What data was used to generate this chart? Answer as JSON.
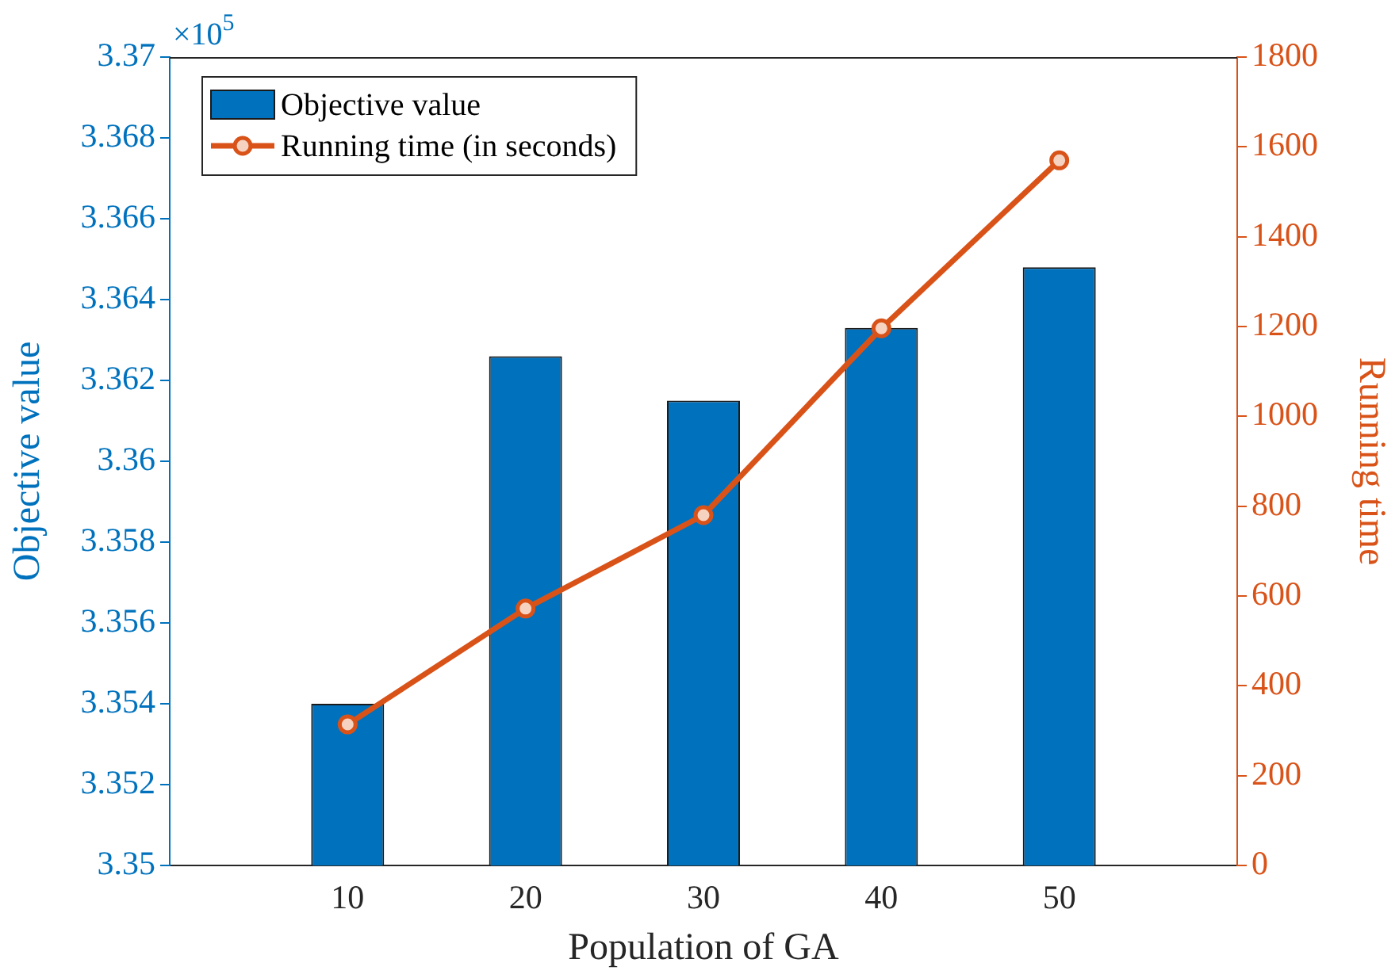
{
  "chart_data": {
    "type": "bar",
    "xlabel": "Population of GA",
    "ylabel": "Objective value",
    "y2label": "Running time",
    "x": [
      10,
      20,
      30,
      40,
      50
    ],
    "xlim": [
      0,
      60
    ],
    "xticks": [
      10,
      20,
      30,
      40,
      50
    ],
    "ylim": [
      3.35,
      3.37
    ],
    "yticks": [
      3.35,
      3.352,
      3.354,
      3.356,
      3.358,
      3.36,
      3.362,
      3.364,
      3.366,
      3.368,
      3.37
    ],
    "y2lim": [
      0,
      1800
    ],
    "y2ticks": [
      0,
      200,
      400,
      600,
      800,
      1000,
      1200,
      1400,
      1600,
      1800
    ],
    "annotations": [
      "×10$^{5}$"
    ],
    "legend": "top left",
    "grid": false,
    "marker": "circle",
    "line_style": "solid",
    "series": [
      {
        "name": "Objective value",
        "color": "#0072bd",
        "values": [
          3.354,
          3.3626,
          3.3615,
          3.3633,
          3.3648
        ]
      },
      {
        "name": "Running time (in seconds)",
        "type": "line",
        "axis": "y2",
        "color": "#d95319",
        "values": [
          314,
          572,
          780,
          1196,
          1570
        ]
      }
    ]
  }
}
